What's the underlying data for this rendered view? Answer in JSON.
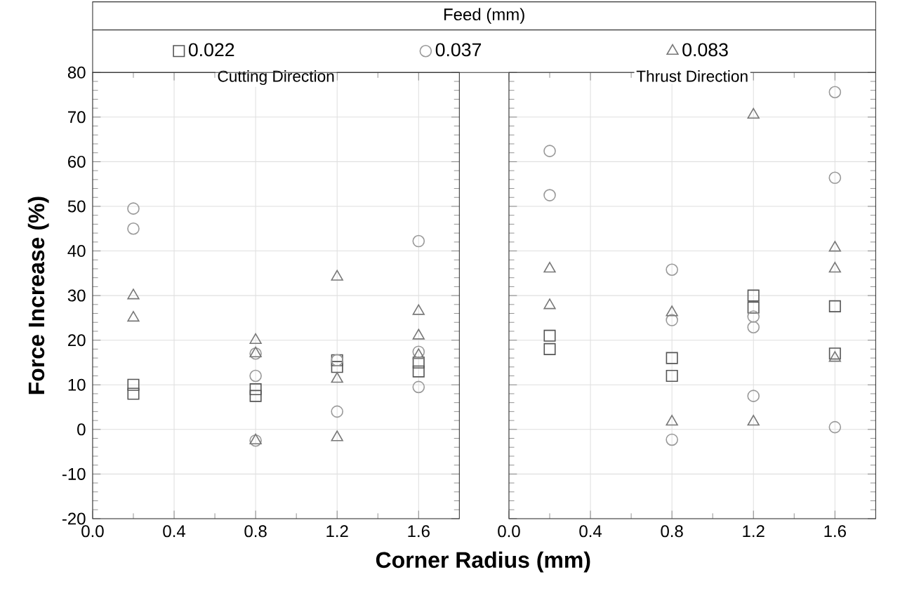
{
  "chart_data": [
    {
      "type": "scatter",
      "title": "Cutting Direction",
      "xlabel": "Corner Radius (mm)",
      "ylabel": "Force Increase (%)",
      "legend_title": "Feed (mm)",
      "legend": "top",
      "grid": true,
      "xlim": [
        0,
        1.8
      ],
      "xticks": [
        {
          "value": 0,
          "label": "0.0"
        },
        0.4,
        0.8,
        1.2,
        1.6
      ],
      "ylim": [
        -20,
        80
      ],
      "yticks": [
        -20,
        -10,
        0,
        10,
        20,
        30,
        40,
        50,
        60,
        70,
        80
      ],
      "series": [
        {
          "name": "0.022",
          "color": "#555555",
          "marker": "square",
          "x": [
            0.2,
            0.2,
            0.8,
            0.8,
            1.2,
            1.2,
            1.6,
            1.6
          ],
          "values": [
            10,
            8,
            9,
            7.5,
            15.5,
            14,
            15,
            13
          ]
        },
        {
          "name": "0.037",
          "color": "#999999",
          "marker": "circle",
          "x": [
            0.2,
            0.2,
            0.8,
            0.8,
            0.8,
            1.2,
            1.2,
            1.6,
            1.6,
            1.6
          ],
          "values": [
            49.5,
            45,
            17,
            12,
            -2.5,
            15.5,
            4,
            42.2,
            17.4,
            9.5
          ]
        },
        {
          "name": "0.083",
          "color": "#777777",
          "marker": "triangle",
          "x": [
            0.2,
            0.2,
            0.8,
            0.8,
            0.8,
            1.2,
            1.2,
            1.2,
            1.6,
            1.6,
            1.6
          ],
          "values": [
            30,
            25,
            20,
            17,
            -2.5,
            34.2,
            11.3,
            -1.8,
            26.5,
            21,
            16.6
          ]
        }
      ]
    },
    {
      "type": "scatter",
      "title": "Thrust Direction",
      "grid": true,
      "tick_labels": "x",
      "xlim": [
        0,
        1.8
      ],
      "xticks": [
        {
          "value": 0,
          "label": "0.0"
        },
        0.4,
        0.8,
        1.2,
        1.6
      ],
      "ylim": [
        -20,
        80
      ],
      "yticks": [
        -20,
        -10,
        0,
        10,
        20,
        30,
        40,
        50,
        60,
        70,
        80
      ],
      "series": [
        {
          "color": "#555555",
          "marker": "square",
          "x": [
            0.2,
            0.2,
            0.8,
            0.8,
            1.2,
            1.2,
            1.6,
            1.6
          ],
          "values": [
            21,
            18,
            16,
            12,
            30,
            27.3,
            27.6,
            17
          ]
        },
        {
          "color": "#999999",
          "marker": "circle",
          "x": [
            0.2,
            0.2,
            0.8,
            0.8,
            0.8,
            1.2,
            1.2,
            1.2,
            1.6,
            1.6,
            1.6
          ],
          "values": [
            62.4,
            52.5,
            35.8,
            24.5,
            -2.3,
            25.3,
            22.9,
            7.5,
            75.6,
            56.4,
            0.5
          ]
        },
        {
          "color": "#777777",
          "marker": "triangle",
          "x": [
            0.2,
            0.2,
            0.8,
            0.8,
            1.2,
            1.2,
            1.6,
            1.6,
            1.6
          ],
          "values": [
            36,
            27.8,
            26.2,
            1.7,
            70.5,
            1.7,
            40.7,
            36,
            16
          ]
        }
      ]
    }
  ]
}
